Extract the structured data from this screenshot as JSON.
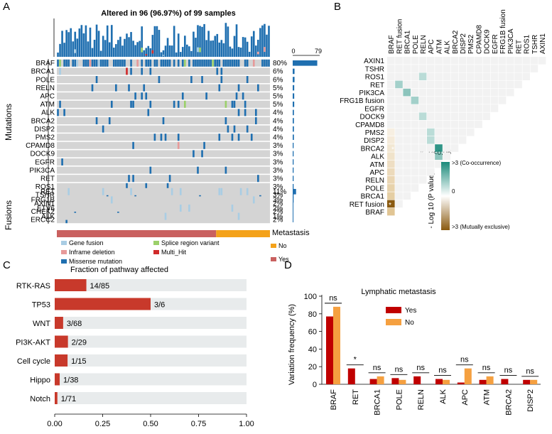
{
  "panel_labels": {
    "a": "A",
    "b": "B",
    "c": "C",
    "d": "D"
  },
  "chart_data": [
    {
      "panel": "A",
      "type": "heatmap",
      "title": "Altered in 96 (96.97%)  of 99 samples",
      "n_samples": 99,
      "mutations_group_label": "Mutations",
      "fusions_group_label": "Fusions",
      "mutation_genes": [
        "BRAF",
        "BRCA1",
        "POLE",
        "RELN",
        "APC",
        "ATM",
        "ALK",
        "BRCA2",
        "DISP2",
        "PMS2",
        "CPAMD8",
        "DOCK9",
        "EGFR",
        "PIK3CA",
        "RET",
        "ROS1",
        "TSHR",
        "AXIN1",
        "CHEK2",
        "ERCC2"
      ],
      "mutation_pct": [
        "80%",
        "6%",
        "6%",
        "5%",
        "5%",
        "5%",
        "4%",
        "4%",
        "4%",
        "4%",
        "3%",
        "3%",
        "3%",
        "3%",
        "3%",
        "3%",
        "3%",
        "2%",
        "2%",
        "2%"
      ],
      "fusion_genes": [
        "RET",
        "FRG1B",
        "ETV6",
        "ALK"
      ],
      "fusion_pct": [
        "11%",
        "3%",
        "2%",
        "1%"
      ],
      "side_axis_ticks": [
        "0",
        "79"
      ],
      "metastasis_label": "Metastasis",
      "metastasis_no_count": 25,
      "legend": {
        "gene_fusion": "Gene fusion",
        "inframe_deletion": "Inframe deletion",
        "missense": "Missense mutation",
        "splice": "Splice region variant",
        "multi_hit": "Multi_Hit",
        "no": "No",
        "yes": "Yes"
      },
      "colors": {
        "missense": "#1f6fb0",
        "fusion": "#a9cde4",
        "inframe": "#e79a9a",
        "splice": "#9bd06a",
        "multi": "#d02a2a",
        "no": "#f4a21a",
        "yes": "#c9605f",
        "background": "#d4d4d4"
      }
    },
    {
      "panel": "B",
      "type": "heatmap",
      "genes": [
        "AXIN1",
        "TSHR",
        "ROS1",
        "RET",
        "PIK3CA",
        "FRG1B fusion",
        "EGFR",
        "DOCK9",
        "CPAMD8",
        "PMS2",
        "DISP2",
        "BRCA2",
        "ALK",
        "ATM",
        "APC",
        "RELN",
        "POLE",
        "BRCA1",
        "RET fusion",
        "BRAF"
      ],
      "significance_note": "P<0.05",
      "legend_title": "- Log 10 (P value)",
      "legend_top": ">3 (Co-occurrence)",
      "legend_mid": "0",
      "legend_bottom": ">3 (Mutually exclusive)",
      "colors": {
        "co": "#1a8a7a",
        "ex": "#8a5a10",
        "empty": "#f2f2f2"
      }
    },
    {
      "panel": "C",
      "type": "bar",
      "title": "Fraction of pathway affected",
      "categories": [
        "RTK-RAS",
        "TP53",
        "WNT",
        "PI3K-AKT",
        "Cell cycle",
        "Hippo",
        "Notch"
      ],
      "values": [
        0.165,
        0.5,
        0.044,
        0.069,
        0.067,
        0.026,
        0.014
      ],
      "labels": [
        "14/85",
        "3/6",
        "3/68",
        "2/29",
        "1/15",
        "1/38",
        "1/71"
      ],
      "xlim": [
        0,
        1
      ],
      "xticks": [
        "0.00",
        "0.25",
        "0.50",
        "0.75",
        "1.00"
      ],
      "colors": {
        "bar": "#c8392b",
        "track": "#e8ebec"
      }
    },
    {
      "panel": "D",
      "type": "bar",
      "title": "Lymphatic metastasis",
      "ylabel": "Variation frequency (%)",
      "categories": [
        "BRAF",
        "RET",
        "BRCA1",
        "POLE",
        "RELN",
        "ALK",
        "APC",
        "ATM",
        "BRCA2",
        "DISP2"
      ],
      "ylim": [
        0,
        100
      ],
      "yticks": [
        "0",
        "20",
        "40",
        "60",
        "80",
        "100"
      ],
      "series": [
        {
          "name": "Yes",
          "values": [
            77,
            18,
            6,
            7,
            9,
            6,
            2,
            5,
            6,
            5
          ],
          "color": "#c00000"
        },
        {
          "name": "No",
          "values": [
            88,
            0,
            9,
            5,
            0,
            5,
            18,
            9,
            0,
            5
          ],
          "color": "#f5a040"
        }
      ],
      "significance": [
        "ns",
        "*",
        "ns",
        "ns",
        "ns",
        "ns",
        "ns",
        "ns",
        "ns",
        "ns"
      ]
    }
  ]
}
